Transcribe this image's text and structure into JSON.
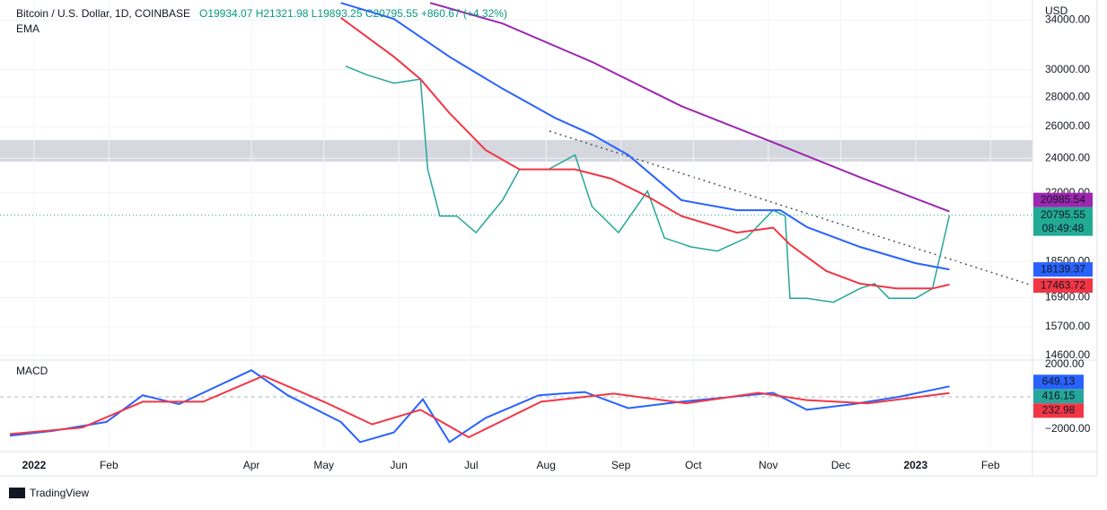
{
  "header": {
    "symbol": "Bitcoin / U.S. Dollar, 1D, COINBASE",
    "ohlc": "O19934.07 H21321.98 L19893.25 C20795.55 +860.67 (+4.32%)",
    "indicator": "EMA",
    "currency": "USD",
    "countdown": "08:49:48",
    "brand": "TradingView"
  },
  "chart_data": [
    {
      "type": "line",
      "log_scale": true,
      "xlim": [
        -14.1,
        413.4
      ],
      "xticks": [
        {
          "value": 0,
          "label": "2022"
        },
        {
          "value": 31,
          "label": "Feb"
        },
        {
          "value": 90,
          "label": "Apr"
        },
        {
          "value": 120,
          "label": "May"
        },
        {
          "value": 151,
          "label": "Jun"
        },
        {
          "value": 181,
          "label": "Jul"
        },
        {
          "value": 212,
          "label": "Aug"
        },
        {
          "value": 243,
          "label": "Sep"
        },
        {
          "value": 273,
          "label": "Oct"
        },
        {
          "value": 304,
          "label": "Nov"
        },
        {
          "value": 334,
          "label": "Dec"
        },
        {
          "value": 365,
          "label": "2023"
        },
        {
          "value": 396,
          "label": "Feb"
        }
      ],
      "ylim": [
        14470,
        35760
      ],
      "yticks": [
        {
          "value": 14600,
          "label": "14600.00"
        },
        {
          "value": 15700,
          "label": "15700.00"
        },
        {
          "value": 16900,
          "label": "16900.00"
        },
        {
          "value": 18500,
          "label": "18500.00"
        },
        {
          "value": 22000,
          "label": "22000.00"
        },
        {
          "value": 24000,
          "label": "24000.00"
        },
        {
          "value": 26000,
          "label": "26000.00"
        },
        {
          "value": 28000,
          "label": "28000.00"
        },
        {
          "value": 30000,
          "label": "30000.00"
        },
        {
          "value": 34000,
          "label": "34000.00"
        }
      ],
      "grid": true,
      "series": [
        {
          "color": "#26a69a",
          "x": [
            129,
            138,
            149,
            160,
            163,
            168,
            175,
            183,
            194,
            201,
            213,
            224,
            231,
            242,
            254,
            261,
            272,
            283,
            295,
            306,
            311,
            313,
            320,
            331,
            342,
            348,
            354,
            365,
            372,
            376,
            379
          ],
          "values": [
            30270,
            29600,
            29000,
            29300,
            23340,
            20750,
            20750,
            19900,
            21600,
            23340,
            23340,
            24200,
            21260,
            19900,
            22100,
            19640,
            19200,
            19000,
            19640,
            21060,
            20750,
            16870,
            16870,
            16700,
            17290,
            17500,
            16870,
            16870,
            17290,
            19200,
            20795.55
          ],
          "label_color": "#22ab94"
        },
        {
          "color": "#f23645",
          "x": [
            127,
            149,
            160,
            172,
            187,
            201,
            224,
            239,
            254,
            268,
            291,
            306,
            313,
            328,
            342,
            357,
            372,
            379
          ],
          "values": [
            34200,
            31000,
            29300,
            26900,
            24500,
            23340,
            23340,
            22800,
            21800,
            20750,
            19900,
            20150,
            19310,
            18070,
            17500,
            17290,
            17290,
            17463.72
          ],
          "label_color": "#f23645"
        },
        {
          "color": "#2962ff",
          "x": [
            127,
            149,
            172,
            194,
            216,
            231,
            246,
            268,
            291,
            309,
            320,
            342,
            365,
            379
          ],
          "values": [
            35500,
            34100,
            31000,
            28600,
            26550,
            25480,
            24200,
            21600,
            21060,
            21060,
            20180,
            19200,
            18430,
            18139.37
          ],
          "label_color": "#2962ff"
        },
        {
          "color": "#9c27b0",
          "x": [
            164,
            194,
            231,
            268,
            306,
            342,
            379
          ],
          "values": [
            35500,
            33700,
            30600,
            27370,
            24980,
            22880,
            20985.54
          ],
          "label_color": "#9c27b0"
        }
      ]
    },
    {
      "type": "line",
      "title": "MACD",
      "xlim": [
        -14.1,
        413.4
      ],
      "ylim": [
        -3222,
        2222
      ],
      "yticks": [
        {
          "value": 2000,
          "label": "2000.00"
        },
        {
          "value": -2000,
          "label": "−2000.00"
        }
      ],
      "histogram_last": 416.15,
      "histogram_color": "#26a69a",
      "series": [
        {
          "color": "#2962ff",
          "x": [
            -10,
            8,
            30,
            45,
            60,
            90,
            105,
            127,
            135,
            149,
            161,
            172,
            187,
            209,
            228,
            246,
            268,
            306,
            320,
            339,
            358,
            379
          ],
          "values": [
            -2400,
            -2100,
            -1550,
            100,
            -450,
            1650,
            100,
            -1550,
            -2800,
            -2200,
            -150,
            -2800,
            -1300,
            100,
            300,
            -700,
            -300,
            250,
            -800,
            -450,
            0,
            649.13
          ]
        },
        {
          "color": "#f23645",
          "x": [
            -10,
            20,
            45,
            70,
            95,
            120,
            140,
            160,
            180,
            210,
            240,
            270,
            300,
            320,
            345,
            379
          ],
          "values": [
            -2300,
            -1900,
            -300,
            -300,
            1300,
            -300,
            -1700,
            -800,
            -2500,
            -300,
            200,
            -400,
            250,
            -200,
            -400,
            232.98
          ]
        }
      ]
    }
  ]
}
